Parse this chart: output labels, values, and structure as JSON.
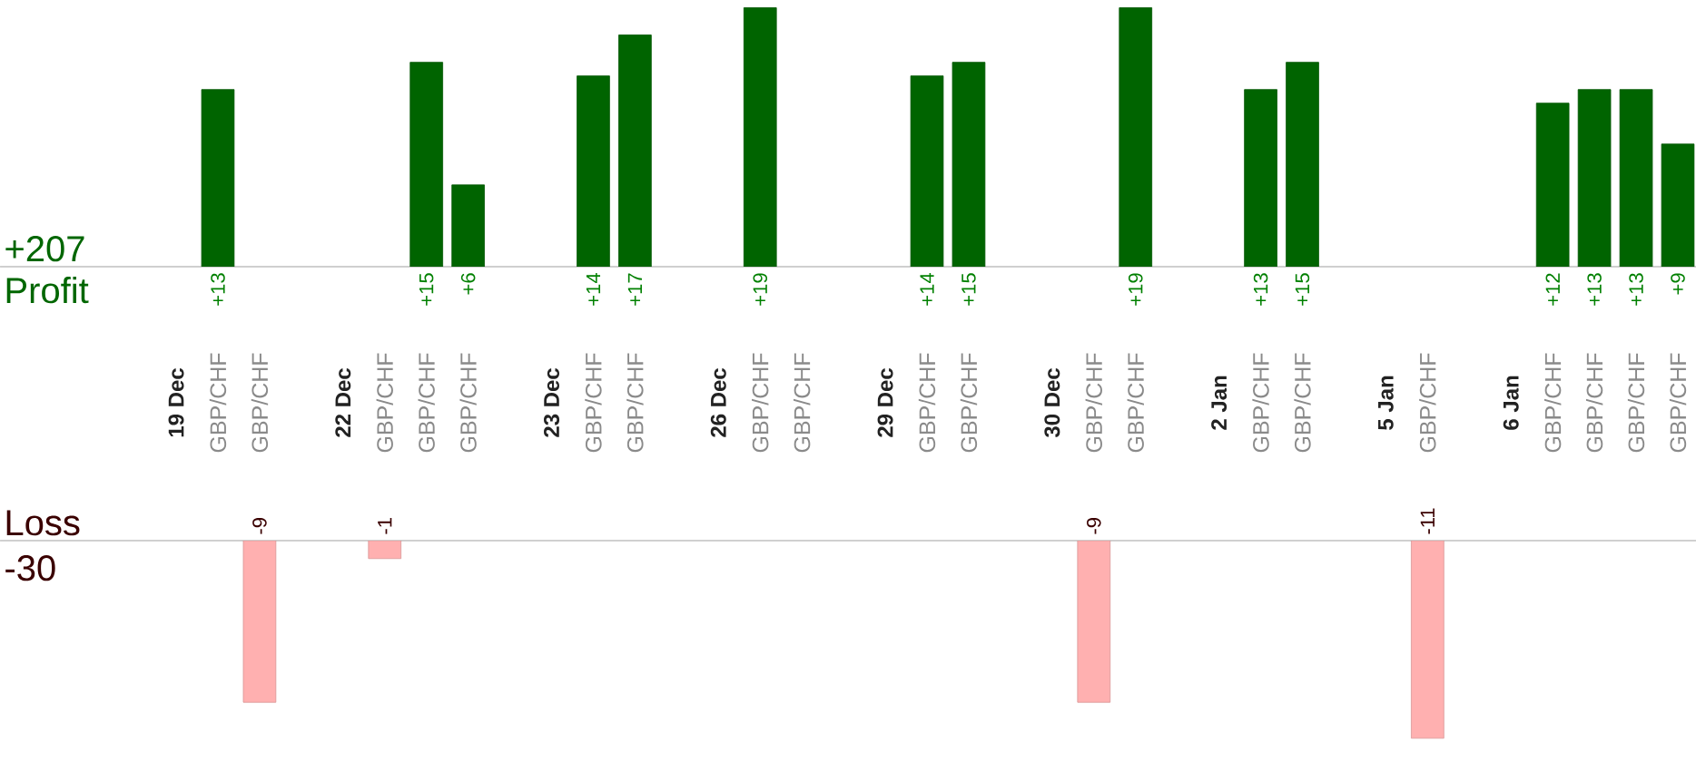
{
  "chart_data": [
    {
      "type": "bar",
      "ylabel": "Profit",
      "annotations": [
        "+207"
      ],
      "categories": [
        "19 Dec",
        "GBP/CHF",
        "GBP/CHF",
        null,
        "22 Dec",
        "GBP/CHF",
        "GBP/CHF",
        "GBP/CHF",
        null,
        "23 Dec",
        "GBP/CHF",
        "GBP/CHF",
        null,
        "26 Dec",
        "GBP/CHF",
        "GBP/CHF",
        null,
        "29 Dec",
        "GBP/CHF",
        "GBP/CHF",
        null,
        "30 Dec",
        "GBP/CHF",
        "GBP/CHF",
        null,
        "2 Jan",
        "GBP/CHF",
        "GBP/CHF",
        null,
        "5 Jan",
        "GBP/CHF",
        null,
        "6 Jan",
        "GBP/CHF",
        "GBP/CHF",
        "GBP/CHF",
        "GBP/CHF"
      ],
      "values": [
        null,
        13,
        null,
        null,
        null,
        null,
        15,
        6,
        null,
        null,
        14,
        17,
        null,
        null,
        19,
        null,
        null,
        null,
        14,
        15,
        null,
        null,
        null,
        19,
        null,
        null,
        13,
        15,
        null,
        null,
        null,
        null,
        null,
        12,
        13,
        13,
        9
      ],
      "value_labels": [
        null,
        "+13",
        null,
        null,
        null,
        null,
        "+15",
        "+6",
        null,
        null,
        "+14",
        "+17",
        null,
        null,
        "+19",
        null,
        null,
        null,
        "+14",
        "+15",
        null,
        null,
        null,
        "+19",
        null,
        null,
        "+13",
        "+15",
        null,
        null,
        null,
        null,
        null,
        "+12",
        "+13",
        "+13",
        "+9"
      ],
      "color": "#006400",
      "tick_labels": "x"
    },
    {
      "type": "bar",
      "ylabel": "Loss",
      "annotations": [
        "-30"
      ],
      "values": [
        null,
        null,
        -9,
        null,
        null,
        -1,
        null,
        null,
        null,
        null,
        null,
        null,
        null,
        null,
        null,
        null,
        null,
        null,
        null,
        null,
        null,
        null,
        -9,
        null,
        null,
        null,
        null,
        null,
        null,
        null,
        -11,
        null,
        null,
        null,
        null,
        null,
        null
      ],
      "data_labels": true,
      "color": "#ffb0b0",
      "tick_labels": false
    }
  ]
}
